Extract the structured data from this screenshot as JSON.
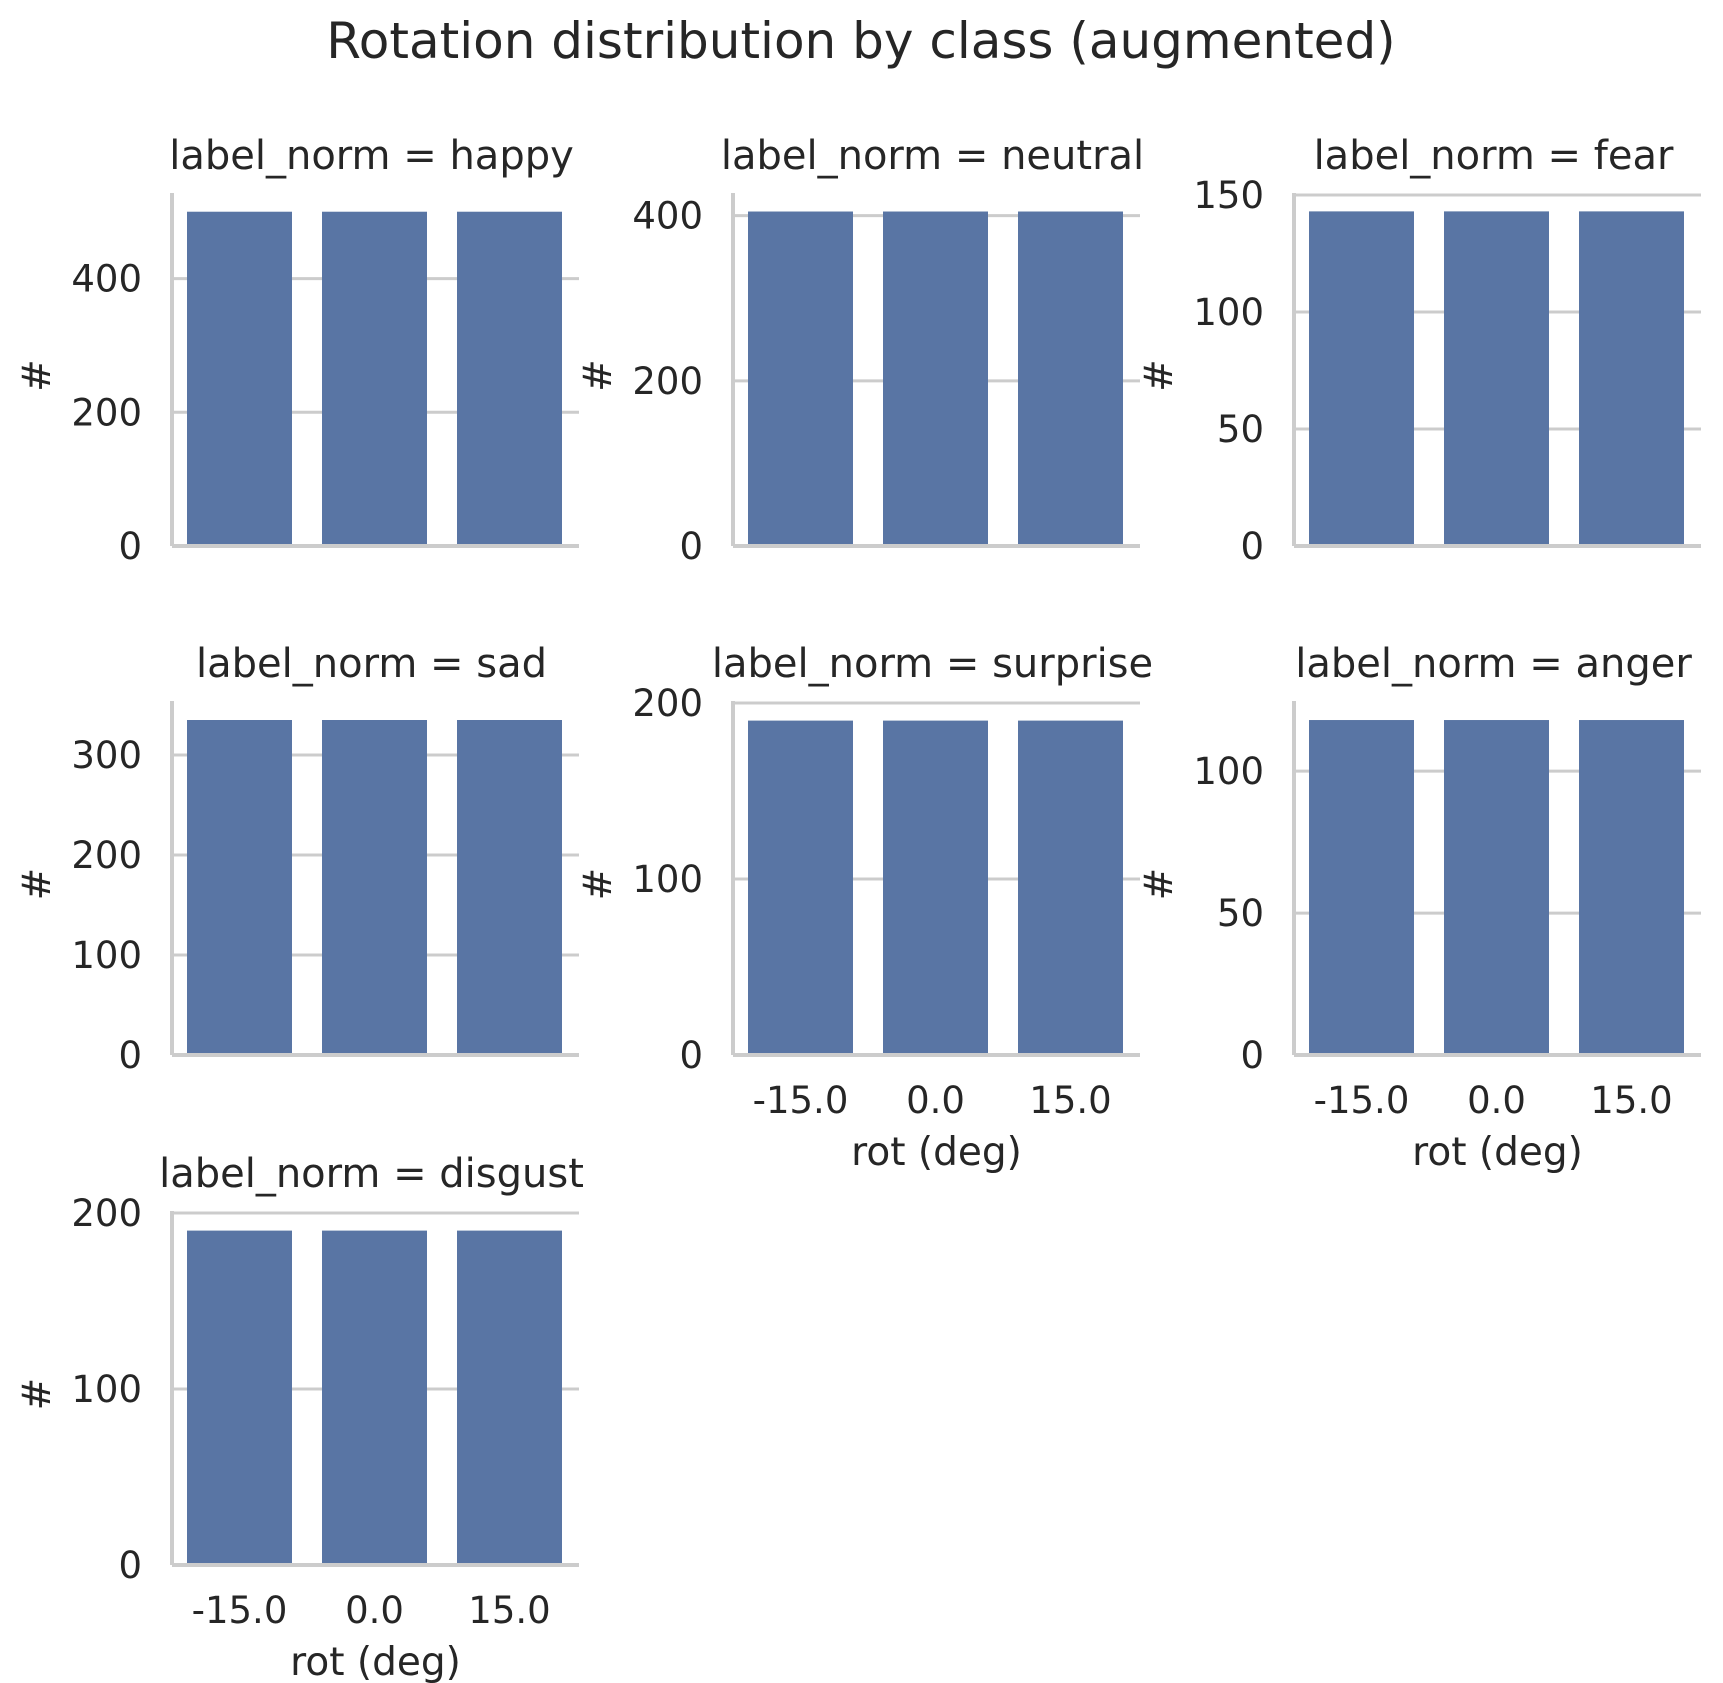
{
  "figure_title": "Rotation distribution by class (augmented)",
  "colors": {
    "bar": "#5975a4",
    "grid": "#cccccc",
    "text": "#262626",
    "background": "#ffffff"
  },
  "chart_data": [
    {
      "type": "bar",
      "title": "label_norm = happy",
      "categories": [
        "-15.0",
        "0.0",
        "15.0"
      ],
      "values": [
        500,
        500,
        500
      ],
      "ylim": [
        0,
        525
      ],
      "yticks": [
        0,
        200,
        400
      ],
      "xlabel": "",
      "ylabel": "#",
      "show_xticklabels": false,
      "grid": "y"
    },
    {
      "type": "bar",
      "title": "label_norm = neutral",
      "categories": [
        "-15.0",
        "0.0",
        "15.0"
      ],
      "values": [
        405,
        405,
        405
      ],
      "ylim": [
        0,
        425
      ],
      "yticks": [
        0,
        200,
        400
      ],
      "xlabel": "",
      "ylabel": "#",
      "show_xticklabels": false,
      "grid": "y"
    },
    {
      "type": "bar",
      "title": "label_norm = fear",
      "categories": [
        "-15.0",
        "0.0",
        "15.0"
      ],
      "values": [
        143,
        143,
        143
      ],
      "ylim": [
        0,
        150
      ],
      "yticks": [
        0,
        50,
        100,
        150
      ],
      "xlabel": "",
      "ylabel": "#",
      "show_xticklabels": false,
      "grid": "y"
    },
    {
      "type": "bar",
      "title": "label_norm = sad",
      "categories": [
        "-15.0",
        "0.0",
        "15.0"
      ],
      "values": [
        335,
        335,
        335
      ],
      "ylim": [
        0,
        352
      ],
      "yticks": [
        0,
        100,
        200,
        300
      ],
      "xlabel": "",
      "ylabel": "#",
      "show_xticklabels": false,
      "grid": "y"
    },
    {
      "type": "bar",
      "title": "label_norm = surprise",
      "categories": [
        "-15.0",
        "0.0",
        "15.0"
      ],
      "values": [
        190,
        190,
        190
      ],
      "ylim": [
        0,
        200
      ],
      "yticks": [
        0,
        100,
        200
      ],
      "xlabel": "rot (deg)",
      "ylabel": "#",
      "show_xticklabels": true,
      "grid": "y"
    },
    {
      "type": "bar",
      "title": "label_norm = anger",
      "categories": [
        "-15.0",
        "0.0",
        "15.0"
      ],
      "values": [
        118,
        118,
        118
      ],
      "ylim": [
        0,
        124
      ],
      "yticks": [
        0,
        50,
        100
      ],
      "xlabel": "rot (deg)",
      "ylabel": "#",
      "show_xticklabels": true,
      "grid": "y"
    },
    {
      "type": "bar",
      "title": "label_norm = disgust",
      "categories": [
        "-15.0",
        "0.0",
        "15.0"
      ],
      "values": [
        190,
        190,
        190
      ],
      "ylim": [
        0,
        200
      ],
      "yticks": [
        0,
        100,
        200
      ],
      "xlabel": "rot (deg)",
      "ylabel": "#",
      "show_xticklabels": true,
      "grid": "y"
    }
  ]
}
